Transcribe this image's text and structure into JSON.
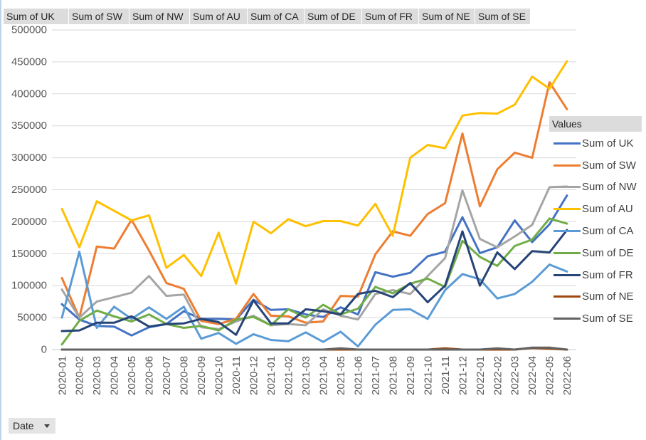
{
  "field_buttons": [
    "Sum of UK",
    "Sum of SW",
    "Sum of NW",
    "Sum of AU",
    "Sum of CA",
    "Sum of DE",
    "Sum of FR",
    "Sum of NE",
    "Sum of SE"
  ],
  "legend": {
    "title": "Values",
    "position": "right"
  },
  "axis_field_button": {
    "label": "Date",
    "icon": "dropdown-arrow-icon"
  },
  "chart_data": {
    "type": "line",
    "grid": true,
    "ylim": [
      0,
      500000
    ],
    "yticks": [
      0,
      50000,
      100000,
      150000,
      200000,
      250000,
      300000,
      350000,
      400000,
      450000,
      500000
    ],
    "categories": [
      "2020-01",
      "2020-02",
      "2020-03",
      "2020-04",
      "2020-05",
      "2020-06",
      "2020-07",
      "2020-08",
      "2020-09",
      "2020-10",
      "2020-11",
      "2020-12",
      "2021-01",
      "2021-02",
      "2021-03",
      "2021-04",
      "2021-05",
      "2021-06",
      "2021-07",
      "2021-08",
      "2021-09",
      "2021-10",
      "2021-11",
      "2021-12",
      "2022-01",
      "2022-02",
      "2022-03",
      "2022-04",
      "2022-05",
      "2022-06"
    ],
    "series": [
      {
        "name": "Sum of UK",
        "color": "#4472C4",
        "values": [
          71000,
          47000,
          37000,
          36000,
          22000,
          35000,
          40000,
          60000,
          48000,
          48000,
          47000,
          78000,
          62000,
          63000,
          55000,
          51000,
          66000,
          55000,
          121000,
          114000,
          120000,
          146000,
          153000,
          207000,
          151000,
          160000,
          202000,
          168000,
          196000,
          241000
        ]
      },
      {
        "name": "Sum of SW",
        "color": "#ED7D31",
        "values": [
          112000,
          50000,
          161000,
          158000,
          203000,
          155000,
          104000,
          95000,
          45000,
          40000,
          48000,
          87000,
          53000,
          52000,
          42000,
          44000,
          84000,
          83000,
          149000,
          185000,
          178000,
          212000,
          229000,
          338000,
          224000,
          282000,
          308000,
          300000,
          418000,
          376000
        ]
      },
      {
        "name": "Sum of NW",
        "color": "#A5A5A5",
        "values": [
          94000,
          50000,
          75000,
          82000,
          89000,
          115000,
          84000,
          86000,
          35000,
          32000,
          44000,
          53000,
          38000,
          40000,
          38000,
          63000,
          53000,
          47000,
          87000,
          93000,
          87000,
          115000,
          143000,
          249000,
          173000,
          160000,
          177000,
          195000,
          254000,
          255000
        ]
      },
      {
        "name": "Sum of AU",
        "color": "#FFC000",
        "values": [
          220000,
          160000,
          232000,
          217000,
          202000,
          210000,
          128000,
          148000,
          115000,
          183000,
          103000,
          200000,
          182000,
          204000,
          193000,
          201000,
          201000,
          194000,
          228000,
          178000,
          300000,
          320000,
          315000,
          366000,
          370000,
          369000,
          383000,
          427000,
          408000,
          451000
        ]
      },
      {
        "name": "Sum of CA",
        "color": "#5B9BD5",
        "values": [
          50000,
          153000,
          34000,
          67000,
          48000,
          66000,
          48000,
          67000,
          17000,
          26000,
          9000,
          24000,
          15000,
          13000,
          27000,
          12000,
          28000,
          5000,
          39000,
          62000,
          63000,
          48000,
          93000,
          118000,
          110000,
          80000,
          87000,
          106000,
          133000,
          122000
        ]
      },
      {
        "name": "Sum of DE",
        "color": "#70AD47",
        "values": [
          8000,
          45000,
          61000,
          52000,
          44000,
          55000,
          40000,
          34000,
          37000,
          30000,
          47000,
          51000,
          38000,
          63000,
          50000,
          70000,
          55000,
          64000,
          98000,
          88000,
          103000,
          111000,
          98000,
          170000,
          145000,
          131000,
          162000,
          172000,
          205000,
          197000
        ]
      },
      {
        "name": "Sum of FR",
        "color": "#264478",
        "values": [
          29000,
          30000,
          42000,
          42000,
          52000,
          36000,
          40000,
          41000,
          48000,
          43000,
          23000,
          77000,
          41000,
          41000,
          63000,
          60000,
          55000,
          87000,
          92000,
          82000,
          104000,
          74000,
          100000,
          185000,
          100000,
          152000,
          126000,
          154000,
          152000,
          187000
        ]
      },
      {
        "name": "Sum of NE",
        "color": "#9E480E",
        "values": [
          0,
          0,
          0,
          0,
          0,
          0,
          0,
          0,
          0,
          0,
          0,
          0,
          0,
          0,
          0,
          0,
          0,
          0,
          0,
          0,
          0,
          0,
          2000,
          0,
          0,
          0,
          0,
          2500,
          1500,
          0
        ]
      },
      {
        "name": "Sum of SE",
        "color": "#636363",
        "values": [
          0,
          0,
          0,
          0,
          0,
          0,
          0,
          0,
          0,
          0,
          0,
          0,
          0,
          0,
          0,
          0,
          2000,
          0,
          0,
          0,
          0,
          0,
          0,
          0,
          0,
          2000,
          0,
          3000,
          3000,
          0
        ]
      }
    ]
  }
}
